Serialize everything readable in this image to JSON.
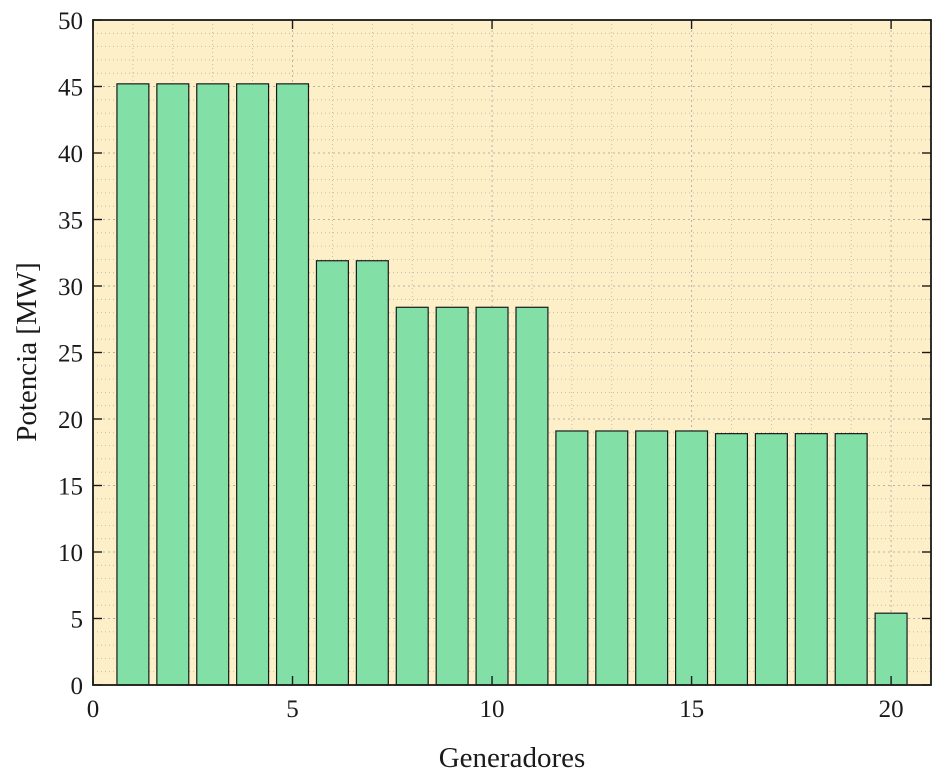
{
  "chart_data": {
    "type": "bar",
    "x": [
      1,
      2,
      3,
      4,
      5,
      6,
      7,
      8,
      9,
      10,
      11,
      12,
      13,
      14,
      15,
      16,
      17,
      18,
      19,
      20
    ],
    "values": [
      45.2,
      45.2,
      45.2,
      45.2,
      45.2,
      31.9,
      31.9,
      28.4,
      28.4,
      28.4,
      28.4,
      19.1,
      19.1,
      19.1,
      19.1,
      18.9,
      18.9,
      18.9,
      18.9,
      5.4
    ],
    "title": "",
    "xlabel": "Generadores",
    "ylabel": "Potencia [MW]",
    "xlim": [
      0,
      21
    ],
    "ylim": [
      0,
      50
    ],
    "xticks": [
      0,
      5,
      10,
      15,
      20
    ],
    "yticks": [
      0,
      5,
      10,
      15,
      20,
      25,
      30,
      35,
      40,
      45,
      50
    ],
    "minor_x_step": 1,
    "minor_y_step": 1,
    "grid": true,
    "colors": {
      "bar_fill": "#82dfa6",
      "bar_edge": "#1a1a1a",
      "plot_background": "#fdefc8",
      "grid": "#b8b3a6",
      "axis": "#1a1a1a"
    }
  }
}
